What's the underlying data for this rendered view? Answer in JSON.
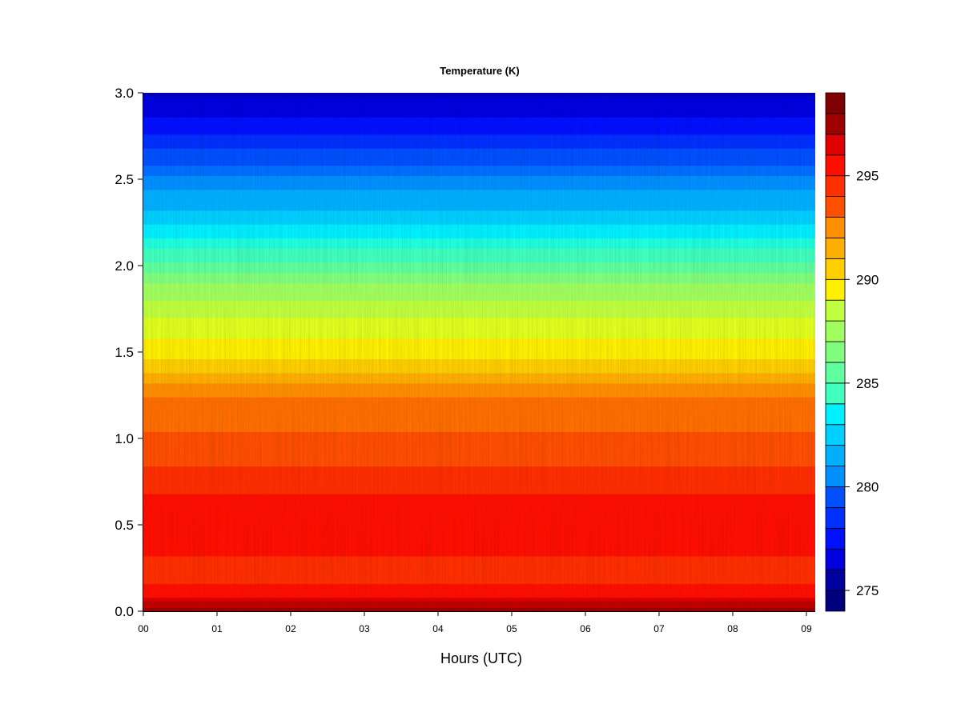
{
  "chart_data": {
    "type": "heatmap",
    "title": "Temperature (K)",
    "xlabel": "Hours (UTC)",
    "ylabel": "",
    "x_tick_labels": [
      "00",
      "01",
      "02",
      "03",
      "04",
      "05",
      "06",
      "07",
      "08",
      "09"
    ],
    "x_ticks": [
      0,
      1,
      2,
      3,
      4,
      5,
      6,
      7,
      8,
      9
    ],
    "xlim": [
      0,
      9.12
    ],
    "y_tick_labels": [
      "0.0",
      "0.5",
      "1.0",
      "1.5",
      "2.0",
      "2.5",
      "3.0"
    ],
    "y_ticks": [
      0,
      0.5,
      1.0,
      1.5,
      2.0,
      2.5,
      3.0
    ],
    "ylim": [
      0,
      3.0
    ],
    "colorbar": {
      "levels": [
        274,
        275,
        276,
        277,
        278,
        279,
        280,
        281,
        282,
        283,
        284,
        285,
        286,
        287,
        288,
        289,
        290,
        291,
        292,
        293,
        294,
        295,
        296,
        297,
        298,
        299
      ],
      "colors": [
        "#00007f",
        "#00009f",
        "#0000bf",
        "#0000df",
        "#0010ff",
        "#0030ff",
        "#0050ff",
        "#0070ff",
        "#0090ff",
        "#00b0ff",
        "#00d0ff",
        "#00f0ff",
        "#20ffdf",
        "#40ffbf",
        "#60ff9f",
        "#80ff7f",
        "#a0ff5f",
        "#c0ff3f",
        "#e0ff1f",
        "#ffef00",
        "#ffcf00",
        "#ffaf00",
        "#ff8f00",
        "#ff6f00",
        "#ff4f00",
        "#ff2f00",
        "#ff0f00",
        "#df0000",
        "#bf0000",
        "#9f0000",
        "#7f0000"
      ],
      "tick_values": [
        275,
        280,
        285,
        290,
        295
      ],
      "tick_labels": [
        "275",
        "280",
        "285",
        "290",
        "295"
      ],
      "range": [
        274,
        299
      ]
    },
    "profile": {
      "height": [
        0.0,
        0.05,
        0.1,
        0.2,
        0.3,
        0.4,
        0.5,
        0.6,
        0.7,
        0.8,
        1.0,
        1.2,
        1.3,
        1.4,
        1.5,
        1.7,
        1.9,
        2.0,
        2.1,
        2.2,
        2.3,
        2.5,
        2.6,
        2.8,
        3.0
      ],
      "temperature": [
        298.0,
        296.6,
        295.3,
        294.8,
        294.9,
        295.2,
        295.4,
        295.2,
        294.9,
        294.3,
        293.5,
        292.8,
        292.0,
        290.8,
        289.8,
        288.5,
        287.0,
        285.5,
        284.5,
        283.3,
        282.3,
        280.7,
        279.5,
        277.7,
        276.3
      ]
    },
    "grid": false,
    "legend": "colorbar-right"
  }
}
